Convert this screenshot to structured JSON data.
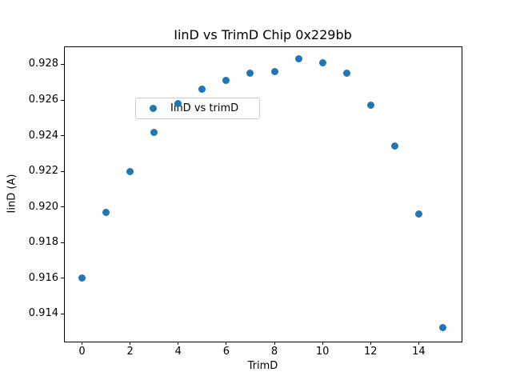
{
  "chart_data": {
    "type": "scatter",
    "title": "IinD vs TrimD Chip 0x229bb",
    "xlabel": "TrimD",
    "ylabel": "IinD (A)",
    "legend_label": "IinD vs trimD",
    "legend_position": "upper left",
    "marker_color": "#1f77b4",
    "grid": false,
    "x": [
      0,
      1,
      2,
      3,
      4,
      5,
      6,
      7,
      8,
      9,
      10,
      11,
      12,
      13,
      14,
      15
    ],
    "y": [
      0.916,
      0.9197,
      0.922,
      0.9242,
      0.9258,
      0.9266,
      0.9271,
      0.9275,
      0.9276,
      0.9283,
      0.9281,
      0.9275,
      0.9257,
      0.9234,
      0.9196,
      0.9132
    ],
    "xlim": [
      -0.75,
      15.75
    ],
    "ylim": [
      0.91248,
      0.92901
    ],
    "xticks": [
      0,
      2,
      4,
      6,
      8,
      10,
      12,
      14
    ],
    "yticks": [
      0.914,
      0.916,
      0.918,
      0.92,
      0.922,
      0.924,
      0.926,
      0.928
    ],
    "ytick_decimals": 3
  }
}
